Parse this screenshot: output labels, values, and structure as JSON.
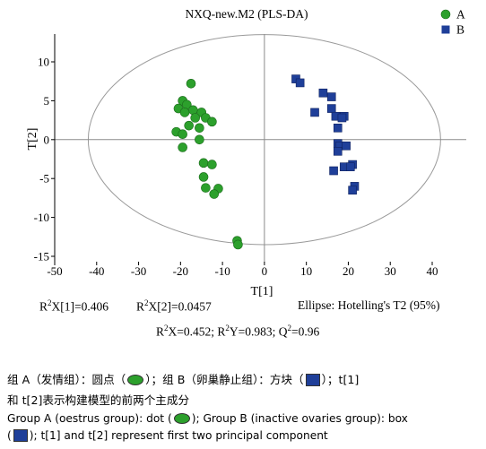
{
  "chart_data": {
    "type": "scatter",
    "title": "NXQ-new.M2 (PLS-DA)",
    "xlabel": "T[1]",
    "ylabel": "T[2]",
    "xlim": [
      -50,
      45
    ],
    "ylim": [
      -15,
      12
    ],
    "xticks": [
      -50,
      -40,
      -30,
      -20,
      -10,
      0,
      10,
      20,
      30,
      40
    ],
    "yticks": [
      10,
      5,
      0,
      -5,
      -10,
      -15
    ],
    "grid": false,
    "legend_position": "top-right",
    "ellipse_label": "Ellipse: Hotelling's T2 (95%)",
    "ellipse": {
      "center": [
        0,
        0
      ],
      "rx": 42,
      "ry": 13.5
    },
    "series": [
      {
        "name": "A",
        "marker": "circle",
        "color": "#2ca02c",
        "points": [
          [
            -17.5,
            7.2
          ],
          [
            -19.5,
            5.0
          ],
          [
            -18.5,
            4.5
          ],
          [
            -20.5,
            4.0
          ],
          [
            -17.0,
            3.8
          ],
          [
            -19.0,
            3.5
          ],
          [
            -15.0,
            3.5
          ],
          [
            -16.5,
            2.8
          ],
          [
            -14.0,
            2.8
          ],
          [
            -12.5,
            2.3
          ],
          [
            -18.0,
            1.8
          ],
          [
            -15.5,
            1.5
          ],
          [
            -21.0,
            1.0
          ],
          [
            -19.5,
            0.7
          ],
          [
            -15.5,
            0.0
          ],
          [
            -19.5,
            -1.0
          ],
          [
            -14.5,
            -3.0
          ],
          [
            -12.5,
            -3.2
          ],
          [
            -14.5,
            -4.8
          ],
          [
            -14.0,
            -6.2
          ],
          [
            -11.0,
            -6.3
          ],
          [
            -12.0,
            -7.0
          ],
          [
            -6.5,
            -13.0
          ],
          [
            -6.3,
            -13.5
          ]
        ]
      },
      {
        "name": "B",
        "marker": "square",
        "color": "#1f3f99",
        "points": [
          [
            7.5,
            7.8
          ],
          [
            8.5,
            7.3
          ],
          [
            14.0,
            6.0
          ],
          [
            16.0,
            5.5
          ],
          [
            16.0,
            4.0
          ],
          [
            12.0,
            3.5
          ],
          [
            17.0,
            3.0
          ],
          [
            19.0,
            3.0
          ],
          [
            18.5,
            2.8
          ],
          [
            17.5,
            1.5
          ],
          [
            17.5,
            -0.5
          ],
          [
            18.0,
            -0.8
          ],
          [
            19.5,
            -0.8
          ],
          [
            17.5,
            -1.5
          ],
          [
            21.0,
            -3.2
          ],
          [
            19.0,
            -3.5
          ],
          [
            16.5,
            -4.0
          ],
          [
            20.5,
            -3.5
          ],
          [
            21.5,
            -6.0
          ],
          [
            21.0,
            -6.5
          ]
        ]
      }
    ]
  },
  "metrics": {
    "r2x1": "X[1]=0.406",
    "r2x2": "X[2]=0.0457",
    "r2x": "X=0.452;",
    "r2y": "Y=0.983;",
    "q2": "=0.96"
  },
  "caption": {
    "cn_line1_a": "组 A（发情组）：圆点（",
    "cn_line1_b": "）；组 B（卵巢静止组）：方块（",
    "cn_line1_c": "）；t[1]",
    "cn_line2": "和 t[2]表示构建模型的前两个主成分",
    "en_line1_a": "Group A (oestrus group): dot (",
    "en_line1_b": "); Group B (inactive ovaries group): box",
    "en_line2_a": "(",
    "en_line2_b": "); t[1] and t[2] represent first two principal component"
  }
}
